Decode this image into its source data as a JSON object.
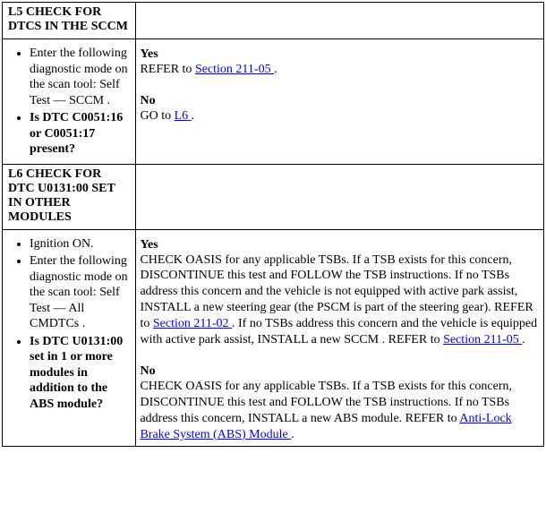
{
  "steps": [
    {
      "id": "L5",
      "title": "L5 CHECK FOR DTCS IN THE SCCM",
      "instructions": [
        {
          "text": "Enter the following diagnostic mode on the scan tool: Self Test — SCCM .",
          "bold": false
        },
        {
          "text": "Is DTC C0051:16 or C0051:17 present?",
          "bold": true
        }
      ],
      "yes": {
        "label": "Yes",
        "segments": [
          {
            "text": "REFER to "
          },
          {
            "text": "Section 211-05 ",
            "link": true,
            "name": "link-section-211-05-a"
          },
          {
            "text": "."
          }
        ]
      },
      "no": {
        "label": "No",
        "segments": [
          {
            "text": "GO to "
          },
          {
            "text": "L6 ",
            "link": true,
            "name": "link-l6"
          },
          {
            "text": "."
          }
        ]
      }
    },
    {
      "id": "L6",
      "title": "L6 CHECK FOR DTC U0131:00 SET IN OTHER MODULES",
      "instructions": [
        {
          "text": "Ignition ON.",
          "bold": false
        },
        {
          "text": "Enter the following diagnostic mode on the scan tool: Self Test — All CMDTCs .",
          "bold": false
        },
        {
          "text": "Is DTC U0131:00 set in 1 or more modules in addition to the ABS module?",
          "bold": true
        }
      ],
      "yes": {
        "label": "Yes",
        "segments": [
          {
            "text": "CHECK OASIS for any applicable TSBs. If a TSB exists for this concern, DISCONTINUE this test and FOLLOW the TSB instructions. If no TSBs address this concern and the vehicle is not equipped with active park assist, INSTALL a new steering gear (the PSCM is part of the steering gear). REFER to "
          },
          {
            "text": "Section 211-02 ",
            "link": true,
            "name": "link-section-211-02"
          },
          {
            "text": ". If no TSBs address this concern and the vehicle is equipped with active park assist, INSTALL a new SCCM . REFER to "
          },
          {
            "text": "Section 211-05 ",
            "link": true,
            "name": "link-section-211-05-b"
          },
          {
            "text": "."
          }
        ]
      },
      "no": {
        "label": "No",
        "segments": [
          {
            "text": "CHECK OASIS for any applicable TSBs. If a TSB exists for this concern, DISCONTINUE this test and FOLLOW the TSB instructions. If no TSBs address this concern, INSTALL a new ABS module. REFER to "
          },
          {
            "text": "Anti-Lock Brake System (ABS) Module ",
            "link": true,
            "name": "link-abs-module"
          },
          {
            "text": "."
          }
        ]
      }
    }
  ]
}
